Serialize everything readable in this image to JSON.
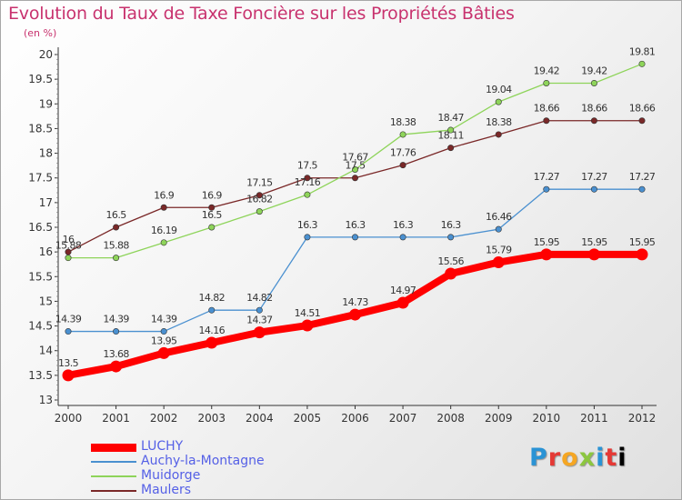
{
  "title": "Evolution du Taux de Taxe Foncière sur les Propriétés Bâties",
  "subtitle": "(en %)",
  "logo": [
    "P",
    "r",
    "o",
    "x",
    "i",
    "t",
    "i"
  ],
  "chart_data": {
    "type": "line",
    "categories": [
      "2000",
      "2001",
      "2002",
      "2003",
      "2004",
      "2005",
      "2006",
      "2007",
      "2008",
      "2009",
      "2010",
      "2011",
      "2012"
    ],
    "ylim": [
      13,
      20
    ],
    "yticks": [
      "13",
      "13.5",
      "14",
      "14.5",
      "15",
      "15.5",
      "16",
      "16.5",
      "17",
      "17.5",
      "18",
      "18.5",
      "19",
      "19.5",
      "20"
    ],
    "grid": false,
    "series": [
      {
        "name": "LUCHY",
        "color": "#ff0000",
        "values": [
          13.5,
          13.68,
          13.95,
          14.16,
          14.37,
          14.51,
          14.73,
          14.97,
          15.56,
          15.79,
          15.95,
          15.95,
          15.95
        ],
        "labels": [
          "13.5",
          "13.68",
          "13.95",
          "14.16",
          "14.37",
          "14.51",
          "14.73",
          "14.97",
          "15.56",
          "15.79",
          "15.95",
          "15.95",
          "15.95"
        ]
      },
      {
        "name": "Auchy-la-Montagne",
        "color": "#4a90d0",
        "values": [
          14.39,
          14.39,
          14.39,
          14.82,
          14.82,
          16.3,
          16.3,
          16.3,
          16.3,
          16.46,
          17.27,
          17.27,
          17.27
        ],
        "labels": [
          "14.39",
          "14.39",
          "14.39",
          "14.82",
          "14.82",
          "16.3",
          "16.3",
          "16.3",
          "16.3",
          "16.46",
          "17.27",
          "17.27",
          "17.27"
        ]
      },
      {
        "name": "Muidorge",
        "color": "#8ed45a",
        "values": [
          15.88,
          15.88,
          16.19,
          16.5,
          16.82,
          17.16,
          17.67,
          18.38,
          18.47,
          19.04,
          19.42,
          19.42,
          19.81
        ],
        "labels": [
          "15.88",
          "15.88",
          "16.19",
          "16.5",
          "16.82",
          "17.16",
          "17.67",
          "18.38",
          "18.47",
          "19.04",
          "19.42",
          "19.42",
          "19.81"
        ]
      },
      {
        "name": "Maulers",
        "color": "#7a2828",
        "values": [
          16,
          16.5,
          16.9,
          16.9,
          17.15,
          17.5,
          17.5,
          17.76,
          18.11,
          18.38,
          18.66,
          18.66,
          18.66
        ],
        "labels": [
          "16",
          "16.5",
          "16.9",
          "16.9",
          "17.15",
          "17.5",
          "17.5",
          "17.76",
          "18.11",
          "18.38",
          "18.66",
          "18.66",
          "18.66"
        ]
      }
    ],
    "legend_position": "bottom-left"
  }
}
